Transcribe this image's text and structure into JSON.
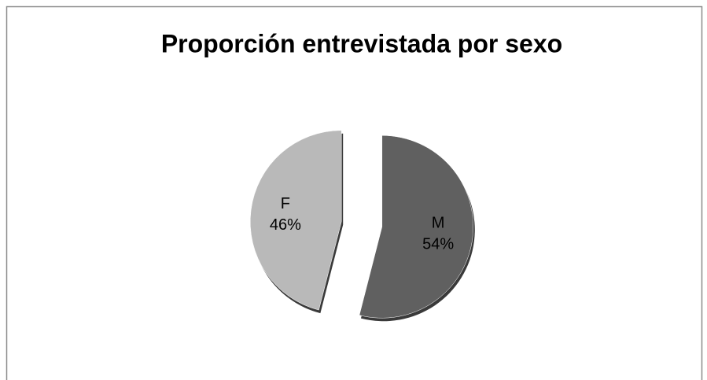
{
  "chart_data": {
    "type": "pie",
    "title": "Proporción entrevistada por sexo",
    "categories": [
      "M",
      "F"
    ],
    "values": [
      54,
      46
    ],
    "value_labels": [
      "54%",
      "46%"
    ],
    "colors": [
      "#606060",
      "#b9b9b9"
    ],
    "exploded": true
  }
}
